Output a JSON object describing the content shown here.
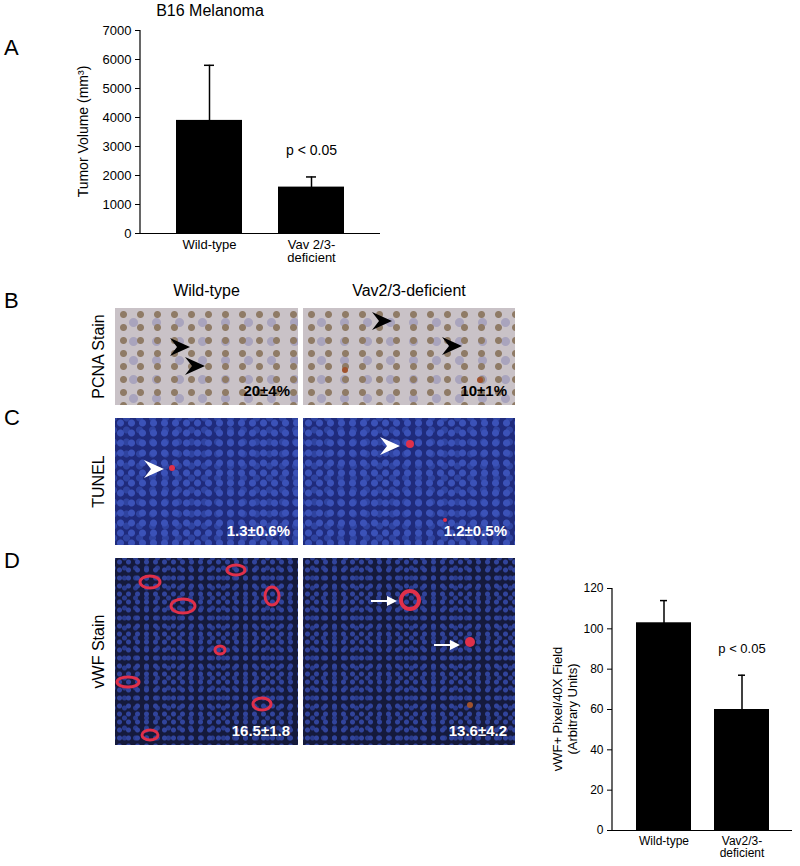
{
  "chart_data": [
    {
      "type": "bar",
      "title": "B16 Melanoma",
      "y_label": "Tumor Volume (mm³)",
      "categories": [
        "Wild-type",
        "Vav 2/3-deficient"
      ],
      "values": [
        3900,
        1600
      ],
      "errors": [
        1900,
        350
      ],
      "color": "#000000",
      "ylim": [
        0,
        7000
      ],
      "yticks": [
        0,
        1000,
        2000,
        3000,
        4000,
        5000,
        6000,
        7000
      ],
      "annotations": [
        {
          "text": "p < 0.05",
          "category": "Vav 2/3-deficient"
        }
      ]
    },
    {
      "type": "bar",
      "y_label": "vWF+ Pixel/40X Field (Arbitrary Units)",
      "categories": [
        "Wild-type",
        "Vav2/3-deficient"
      ],
      "values": [
        103,
        60
      ],
      "errors": [
        11,
        17
      ],
      "color": "#000000",
      "ylim": [
        0,
        120
      ],
      "yticks": [
        0,
        20,
        40,
        60,
        80,
        100,
        120
      ],
      "annotations": [
        {
          "text": "p < 0.05",
          "category": "Vav2/3-deficient"
        }
      ]
    }
  ],
  "figure": {
    "panel_labels": [
      "A",
      "B",
      "C",
      "D"
    ],
    "columns": [
      "Wild-type",
      "Vav2/3-deficient"
    ],
    "micrographs": [
      {
        "row": "PCNA Stain",
        "labels": [
          "20±4%",
          "10±1%"
        ]
      },
      {
        "row": "TUNEL",
        "labels": [
          "1.3±0.6%",
          "1.2±0.5%"
        ]
      },
      {
        "row": "vWF Stain",
        "labels": [
          "16.5±1.8",
          "13.6±4.2"
        ]
      }
    ]
  }
}
